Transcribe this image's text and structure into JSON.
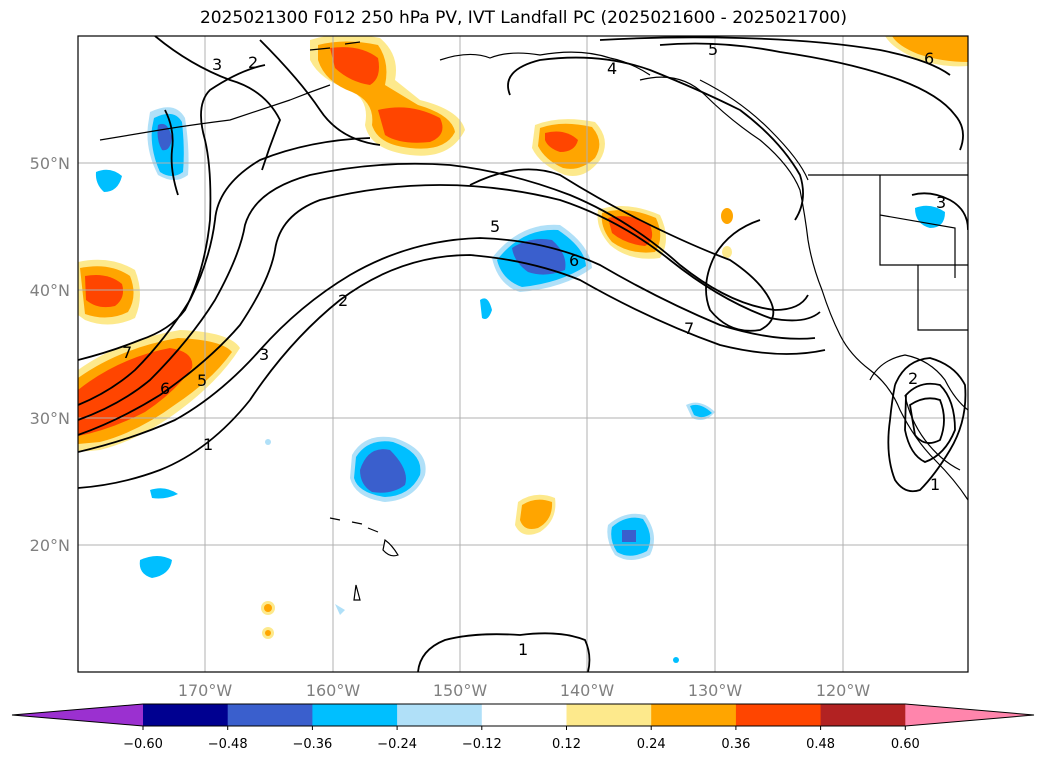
{
  "title": "2025021300 F012 250 hPa PV, IVT Landfall PC (2025021600 - 2025021700)",
  "lat_labels": [
    "50°N",
    "40°N",
    "30°N",
    "20°N"
  ],
  "lon_labels": [
    "170°W",
    "160°W",
    "150°W",
    "140°W",
    "130°W",
    "120°W"
  ],
  "colorbar": {
    "tick_labels": [
      "−0.60",
      "−0.48",
      "−0.36",
      "−0.24",
      "−0.12",
      "0.12",
      "0.24",
      "0.36",
      "0.48",
      "0.60"
    ],
    "colors": [
      "#9b30d0",
      "#000090",
      "#3a5fcd",
      "#00bfff",
      "#b0e0f8",
      "#ffffff",
      "#fde98c",
      "#ffa500",
      "#ff4500",
      "#b22222",
      "#ff85ac"
    ]
  },
  "contour_labels": [
    "2",
    "3",
    "5",
    "4",
    "5",
    "6",
    "6",
    "7",
    "2",
    "3",
    "5",
    "6",
    "7",
    "1",
    "1",
    "1",
    "2",
    "3"
  ],
  "colors": {
    "positive_strong": "#ff4500",
    "positive": "#ffa500",
    "positive_weak": "#fde98c",
    "negative_strong": "#3a5fcd",
    "negative": "#00bfff",
    "negative_weak": "#b0e0f8"
  }
}
